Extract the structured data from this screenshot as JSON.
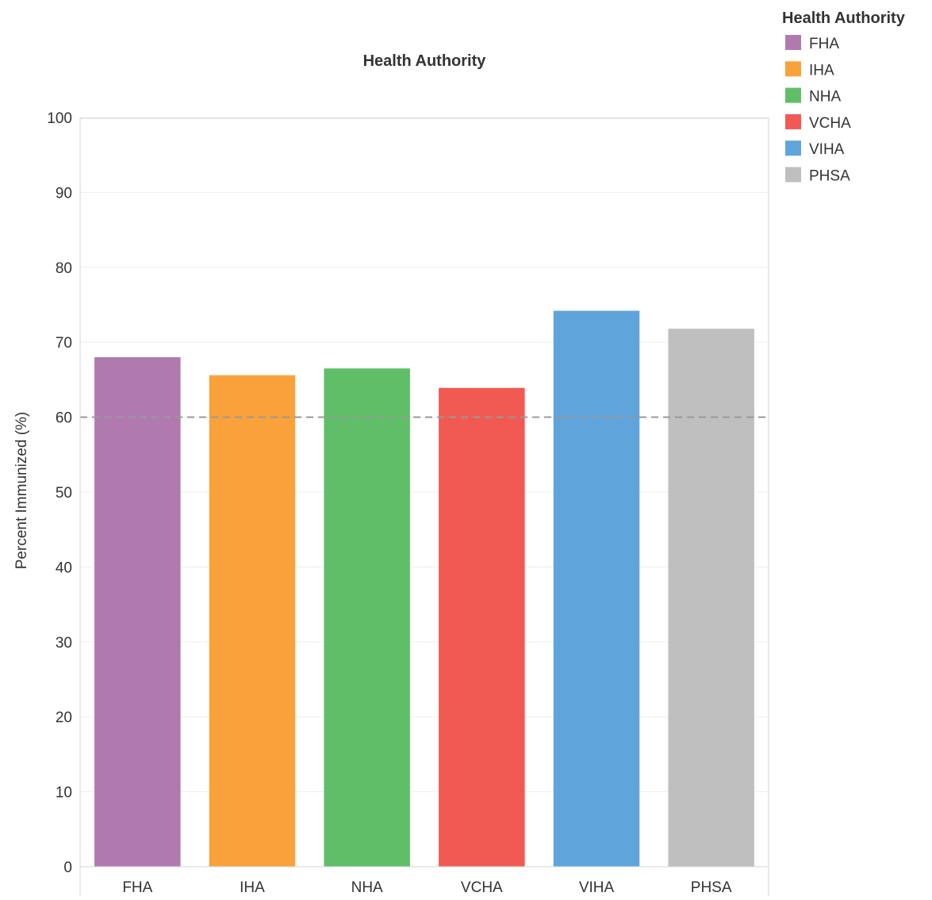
{
  "chart_data": {
    "type": "bar",
    "title": "Health Authority",
    "xlabel": "",
    "ylabel": "Percent Immunized (%)",
    "ylim": [
      0,
      100
    ],
    "yticks": [
      0,
      10,
      20,
      30,
      40,
      50,
      60,
      70,
      80,
      90,
      100
    ],
    "categories": [
      "FHA",
      "IHA",
      "NHA",
      "VCHA",
      "VIHA",
      "PHSA"
    ],
    "values": [
      68,
      65.6,
      66.5,
      63.9,
      74.2,
      71.8
    ],
    "colors": [
      "#b07aaf",
      "#f9a23b",
      "#60be69",
      "#f05a53",
      "#5fa5db",
      "#bfbfbf"
    ],
    "reference_line": {
      "value": 60,
      "style": "dashed",
      "color": "#999999"
    },
    "grid": true,
    "legend": {
      "title": "Health Authority",
      "placement": "top-right",
      "items": [
        "FHA",
        "IHA",
        "NHA",
        "VCHA",
        "VIHA",
        "PHSA"
      ]
    }
  }
}
